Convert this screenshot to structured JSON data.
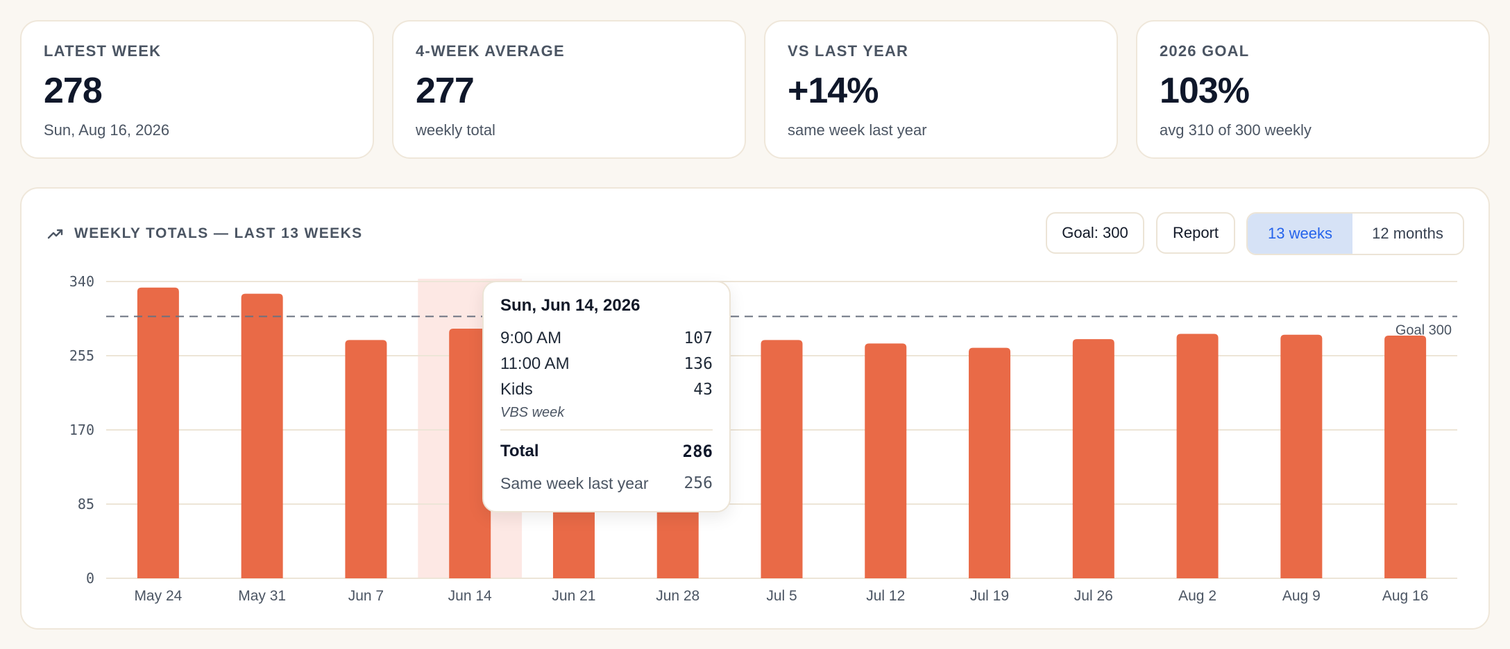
{
  "cards": [
    {
      "label": "LATEST WEEK",
      "value": "278",
      "sub": "Sun, Aug 16, 2026"
    },
    {
      "label": "4-WEEK AVERAGE",
      "value": "277",
      "sub": "weekly total"
    },
    {
      "label": "VS LAST YEAR",
      "value": "+14%",
      "sub": "same week last year"
    },
    {
      "label": "2026 GOAL",
      "value": "103%",
      "sub": "avg 310 of 300 weekly"
    }
  ],
  "panel": {
    "title": "WEEKLY TOTALS — LAST 13 WEEKS",
    "title_icon": "trending-up-icon",
    "goal_button": "Goal: 300",
    "report_button": "Report",
    "range_options": [
      "13 weeks",
      "12 months"
    ],
    "range_selected": "13 weeks"
  },
  "colors": {
    "bar": "#e96a47",
    "highlight": "#fde8e4",
    "goal_line": "#6b7280",
    "active": "#2563eb"
  },
  "chart_data": {
    "type": "bar",
    "categories": [
      "May 24",
      "May 31",
      "Jun 7",
      "Jun 14",
      "Jun 21",
      "Jun 28",
      "Jul 5",
      "Jul 12",
      "Jul 19",
      "Jul 26",
      "Aug 2",
      "Aug 9",
      "Aug 16"
    ],
    "values": [
      333,
      326,
      273,
      286,
      276,
      274,
      273,
      269,
      264,
      274,
      280,
      279,
      278
    ],
    "yticks": [
      0,
      85,
      170,
      255,
      340
    ],
    "ylim": [
      0,
      340
    ],
    "goal": {
      "value": 300,
      "label": "Goal 300"
    },
    "highlighted": "Jun 14",
    "grid": true
  },
  "tooltip": {
    "date": "Sun, Jun 14, 2026",
    "rows": [
      {
        "label": "9:00 AM",
        "value": "107"
      },
      {
        "label": "11:00 AM",
        "value": "136"
      },
      {
        "label": "Kids",
        "value": "43"
      }
    ],
    "note": "VBS week",
    "total_label": "Total",
    "total_value": "286",
    "last_year_label": "Same week last year",
    "last_year_value": "256"
  }
}
